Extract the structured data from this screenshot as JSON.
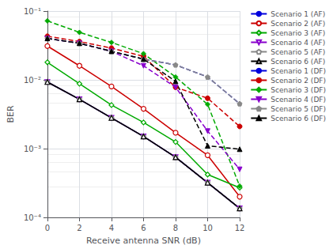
{
  "chart_data": {
    "type": "line",
    "xlabel": "Receive antenna SNR (dB)",
    "ylabel": "BER",
    "x": [
      0,
      2,
      4,
      6,
      8,
      10,
      12
    ],
    "xlim": [
      0,
      12
    ],
    "xticks": [
      0,
      2,
      4,
      6,
      8,
      10,
      12
    ],
    "ylim": [
      0.0001,
      0.1
    ],
    "yticks": [
      {
        "value": 0.0001,
        "label": "10⁻⁴"
      },
      {
        "value": 0.001,
        "label": "10⁻³"
      },
      {
        "value": 0.01,
        "label": "10⁻²"
      },
      {
        "value": 0.1,
        "label": "10⁻¹"
      }
    ],
    "log": "y",
    "grid": true,
    "legend": "right",
    "series": [
      {
        "name": "Scenario 1 (AF)",
        "color": "#0000dd",
        "line_style": "solid",
        "marker": "none",
        "values": [
          0.0093,
          0.0052,
          0.0028,
          0.0015,
          0.00075,
          0.00032,
          0.000135
        ]
      },
      {
        "name": "Scenario 2 (AF)",
        "color": "#cc0000",
        "line_style": "solid",
        "marker": "open circle",
        "values": [
          0.031,
          0.016,
          0.008,
          0.0038,
          0.0017,
          0.0008,
          0.0002
        ]
      },
      {
        "name": "Scenario 3 (AF)",
        "color": "#00aa00",
        "line_style": "solid",
        "marker": "open diamond",
        "values": [
          0.018,
          0.0088,
          0.0043,
          0.0024,
          0.00125,
          0.00042,
          0.00027
        ]
      },
      {
        "name": "Scenario 4 (AF)",
        "color": "#8800cc",
        "line_style": "solid",
        "marker": "open triangle-down",
        "values": [
          0.0093,
          0.0052,
          0.0028,
          0.0015,
          0.00075,
          0.00032,
          0.000135
        ]
      },
      {
        "name": "Scenario 5 (AF)",
        "color": "#888888",
        "line_style": "solid",
        "marker": "open pentagon",
        "values": [
          0.0093,
          0.0052,
          0.0028,
          0.0015,
          0.00075,
          0.00032,
          0.000135
        ]
      },
      {
        "name": "Scenario 6 (AF)",
        "color": "#000000",
        "line_style": "solid",
        "marker": "open triangle",
        "values": [
          0.0093,
          0.0052,
          0.0028,
          0.0015,
          0.00075,
          0.00032,
          0.000135
        ]
      },
      {
        "name": "Scenario 1 (DF)",
        "color": "#0000dd",
        "line_style": "dashed",
        "marker": "none",
        "values": [
          0.04,
          0.034,
          0.026,
          0.02,
          0.0165,
          0.011,
          0.0045
        ]
      },
      {
        "name": "Scenario 2 (DF)",
        "color": "#cc0000",
        "line_style": "dashed",
        "marker": "circle",
        "values": [
          0.043,
          0.036,
          0.029,
          0.022,
          0.0078,
          0.0054,
          0.0021
        ]
      },
      {
        "name": "Scenario 3 (DF)",
        "color": "#00aa00",
        "line_style": "dashed",
        "marker": "diamond",
        "values": [
          0.072,
          0.049,
          0.035,
          0.024,
          0.011,
          0.0044,
          0.000285
        ]
      },
      {
        "name": "Scenario 4 (DF)",
        "color": "#8800cc",
        "line_style": "dashed",
        "marker": "triangle-down",
        "values": [
          0.04,
          0.034,
          0.026,
          0.016,
          0.0078,
          0.0018,
          0.0005
        ]
      },
      {
        "name": "Scenario 5 (DF)",
        "color": "#888888",
        "line_style": "dashed",
        "marker": "pentagon",
        "values": [
          0.04,
          0.034,
          0.026,
          0.02,
          0.0165,
          0.011,
          0.0045
        ]
      },
      {
        "name": "Scenario 6 (DF)",
        "color": "#000000",
        "line_style": "dashed",
        "marker": "triangle",
        "values": [
          0.04,
          0.034,
          0.026,
          0.02,
          0.0095,
          0.0011,
          0.00098
        ]
      }
    ]
  }
}
